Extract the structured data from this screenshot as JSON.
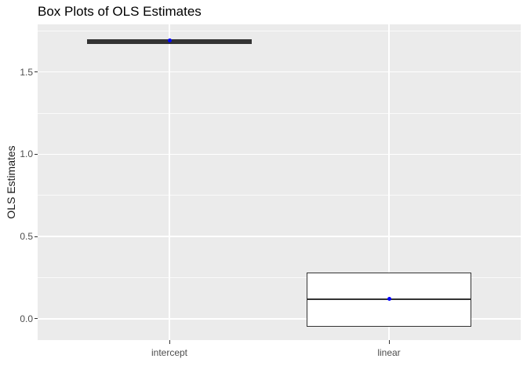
{
  "chart_data": {
    "type": "boxplot",
    "title": "Box Plots of OLS Estimates",
    "xlabel": "",
    "ylabel": "OLS Estimates",
    "categories": [
      "intercept",
      "linear"
    ],
    "y_tick_labels": [
      "0.0",
      "0.5",
      "1.0",
      "1.5"
    ],
    "y_tick_values": [
      0.0,
      0.5,
      1.0,
      1.5
    ],
    "y_minor_values": [
      0.25,
      0.75,
      1.25,
      1.75
    ],
    "ylim": [
      -0.13,
      1.79
    ],
    "grid": "on",
    "legend": "none",
    "series": [
      {
        "category": "intercept",
        "whisker_low": 1.67,
        "q1": 1.67,
        "median": 1.69,
        "q3": 1.7,
        "whisker_high": 1.7,
        "mean_point": 1.69
      },
      {
        "category": "linear",
        "whisker_low": -0.05,
        "q1": -0.05,
        "median": 0.12,
        "q3": 0.28,
        "whisker_high": 0.28,
        "mean_point": 0.12
      }
    ],
    "colors": {
      "panel_bg": "#EBEBEB",
      "grid": "#FFFFFF",
      "box_border": "#333333",
      "box_fill": "#FFFFFF",
      "box_collapsed_fill": "#333333",
      "median": "#333333",
      "mean_point": "#0000FF",
      "tick": "#333333",
      "tick_label": "#4D4D4D",
      "title": "#000000"
    }
  }
}
